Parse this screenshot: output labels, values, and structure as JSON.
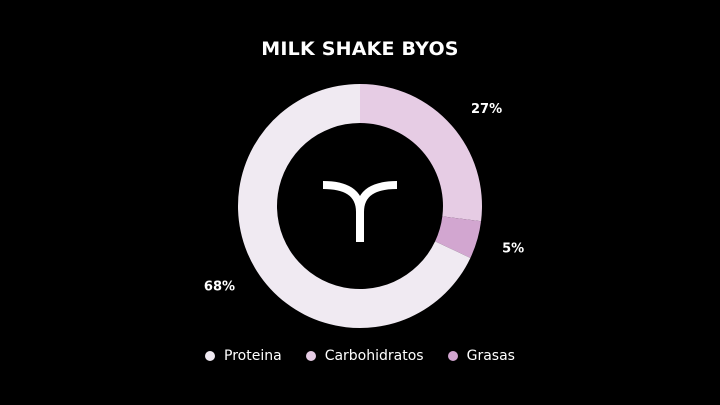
{
  "chart_data": {
    "type": "pie",
    "title": "MILK SHAKE BYOS",
    "donut": true,
    "categories": [
      "Carbohidratos",
      "Grasas",
      "Proteina"
    ],
    "values": [
      27,
      5,
      68
    ],
    "data_labels": [
      "27%",
      "5%",
      "68%"
    ],
    "colors": [
      "#e6cce4",
      "#d2a6d0",
      "#f0eaf2"
    ],
    "legend": {
      "placement": "bottom",
      "entries": [
        {
          "label": "Proteina",
          "color": "#f0eaf2"
        },
        {
          "label": "Carbohidratos",
          "color": "#e6cce4"
        },
        {
          "label": "Grasas",
          "color": "#d2a6d0"
        }
      ]
    },
    "center_icon": "brand-logo-icon"
  }
}
